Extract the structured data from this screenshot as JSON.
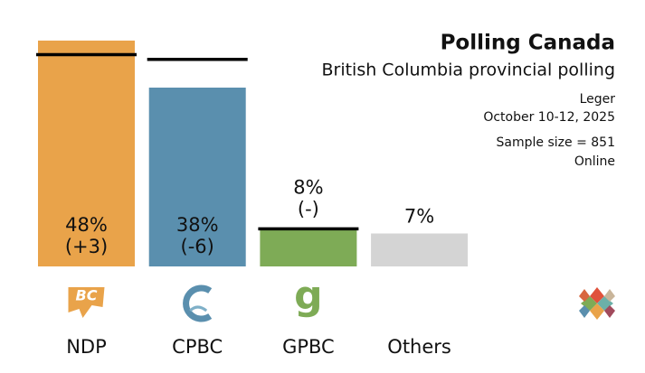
{
  "chart_data": {
    "type": "bar",
    "title": "Polling Canada",
    "subtitle": "British Columbia provincial polling",
    "pollster": "Leger",
    "dates": "October 10-12, 2025",
    "sample": "Sample size = 851",
    "method": "Online",
    "categories": [
      "NDP",
      "CPBC",
      "GPBC",
      "Others"
    ],
    "values": [
      48,
      38,
      8,
      7
    ],
    "value_labels": [
      "48%",
      "38%",
      "8%",
      "7%"
    ],
    "changes": [
      "(+3)",
      "(-6)",
      "(-)",
      null
    ],
    "previous": [
      45,
      44,
      8,
      null
    ],
    "colors": [
      "#e9a34a",
      "#5a8fae",
      "#7eab56",
      "#d4d4d4"
    ],
    "logo_texts": [
      "BC",
      null,
      "g",
      null
    ]
  }
}
